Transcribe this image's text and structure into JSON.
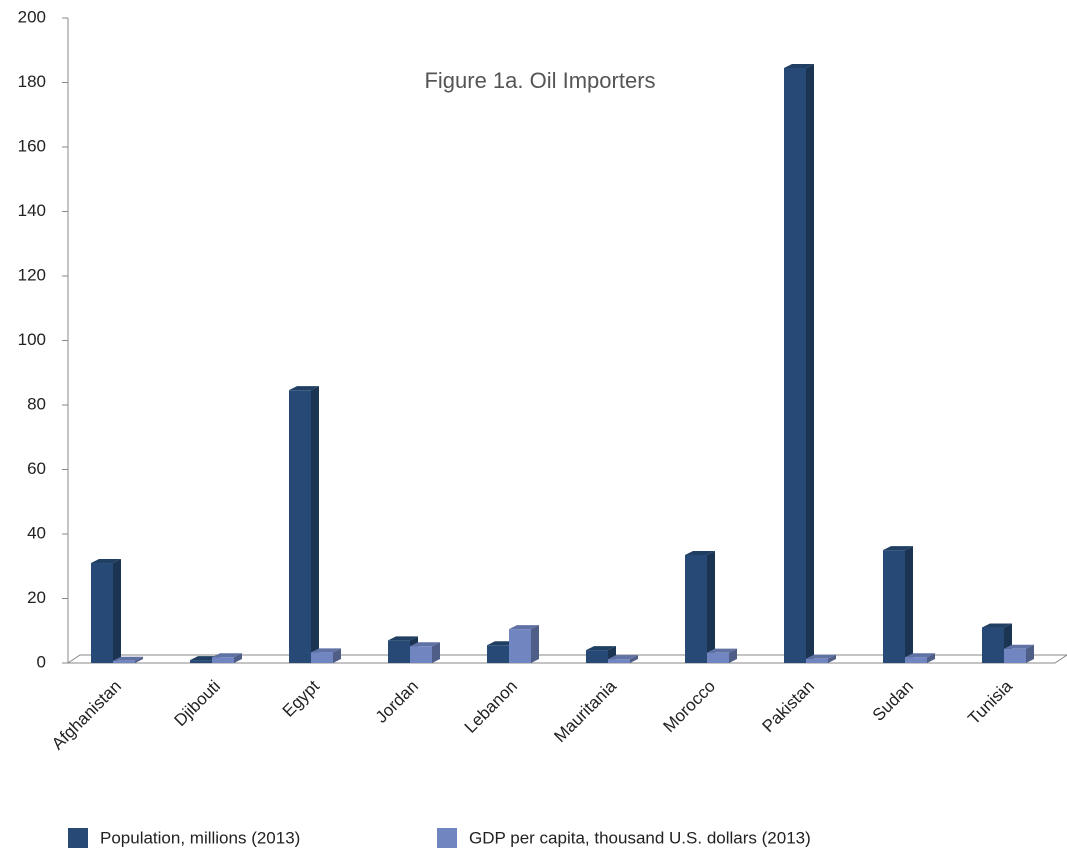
{
  "chart_data": {
    "type": "bar",
    "title": "Figure 1a. Oil Importers",
    "categories": [
      "Afghanistan",
      "Djibouti",
      "Egypt",
      "Jordan",
      "Lebanon",
      "Mauritania",
      "Morocco",
      "Pakistan",
      "Sudan",
      "Tunisia"
    ],
    "series": [
      {
        "name": "Population, millions (2013)",
        "color": "#264a75",
        "values": [
          31,
          0.9,
          84.6,
          7,
          5.5,
          4,
          33.5,
          184.5,
          35,
          11
        ]
      },
      {
        "name": "GDP per capita, thousand U.S. dollars (2013)",
        "color": "#7186c0",
        "values": [
          0.7,
          1.8,
          3.3,
          5.2,
          10.5,
          1.2,
          3.2,
          1.3,
          1.8,
          4.4
        ]
      }
    ],
    "ylim": [
      0,
      200
    ],
    "yticks": [
      0,
      20,
      40,
      60,
      80,
      100,
      120,
      140,
      160,
      180,
      200
    ],
    "grid": false,
    "legend": "bottom"
  }
}
